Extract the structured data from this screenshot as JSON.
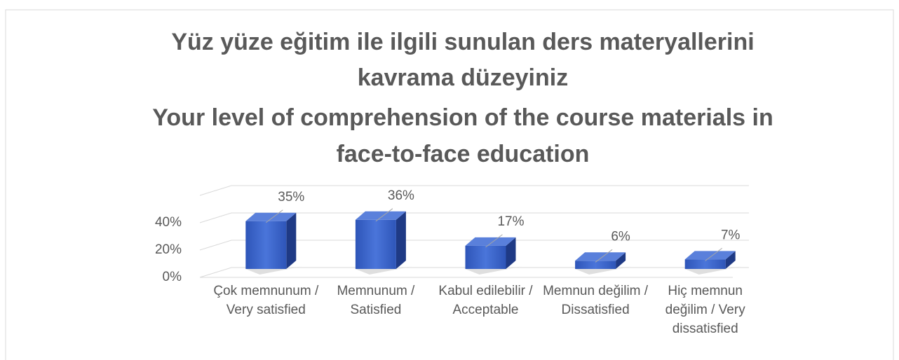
{
  "chart_data": {
    "type": "bar3d",
    "title": [
      "Yüz yüze eğitim ile ilgili sunulan ders materyallerini",
      "kavrama düzeyiniz",
      "Your level of comprehension of the course materials in",
      "face-to-face education"
    ],
    "categories": [
      "Çok memnunum / Very satisfied",
      "Memnunum / Satisfied",
      "Kabul edilebilir / Acceptable",
      "Memnun değilim / Dissatisfied",
      "Hiç memnun değilim / Very dissatisfied"
    ],
    "values": [
      35,
      36,
      17,
      6,
      7
    ],
    "value_labels": [
      "35%",
      "36%",
      "17%",
      "6%",
      "7%"
    ],
    "color": "#3a64c8",
    "ylim": [
      0,
      60
    ],
    "yticks": [
      {
        "value": 0,
        "label": "0%"
      },
      {
        "value": 20,
        "label": "20%"
      },
      {
        "value": 40,
        "label": "40%"
      }
    ],
    "grid": true
  }
}
